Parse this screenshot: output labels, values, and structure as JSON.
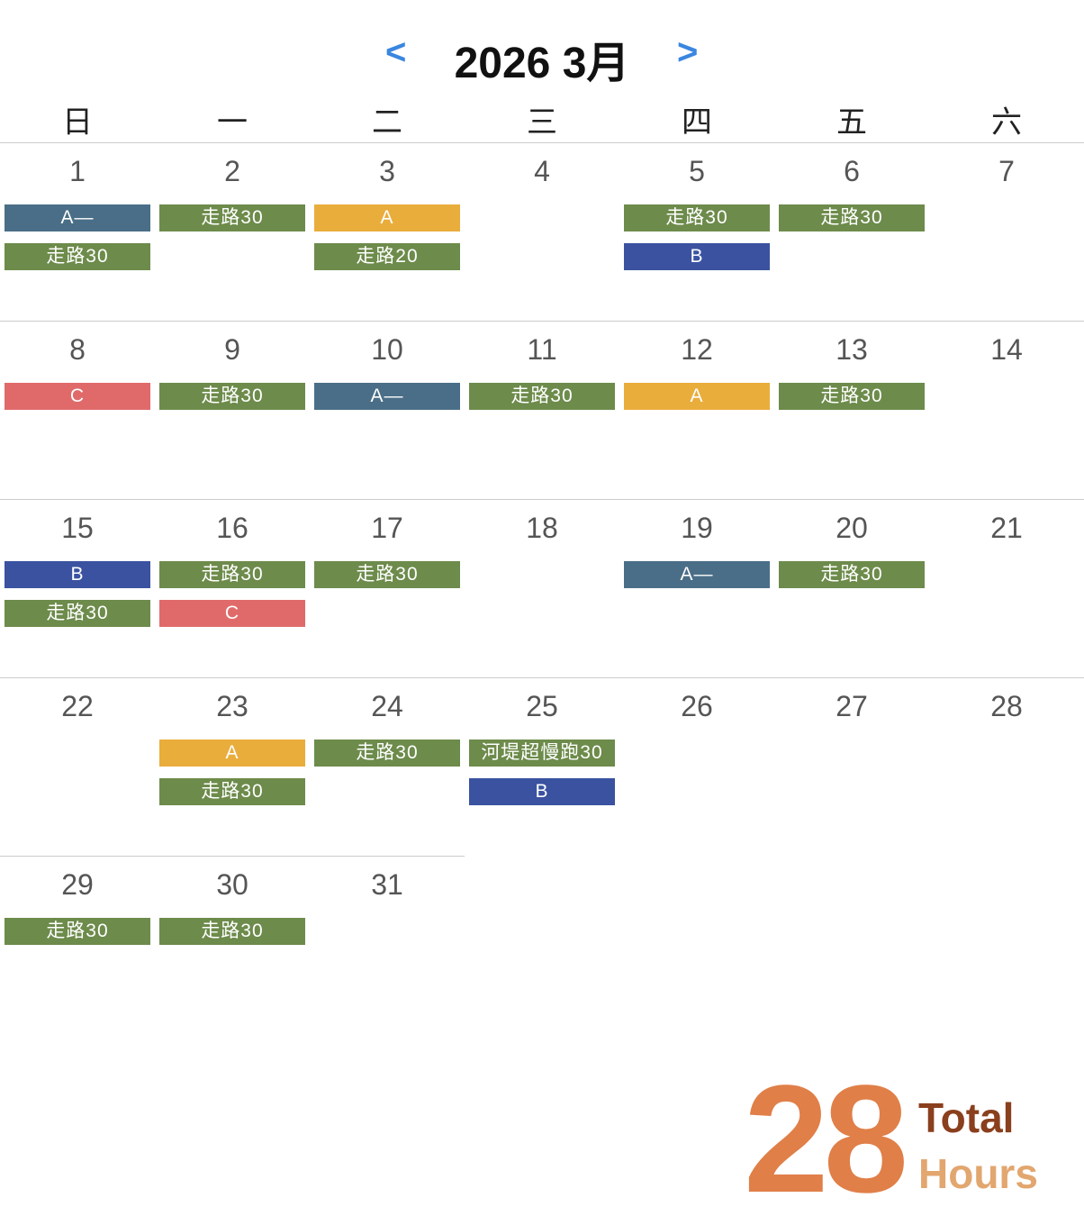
{
  "header": {
    "prev": "<",
    "title": "2026 3月",
    "next": ">"
  },
  "weekdays": [
    "日",
    "一",
    "二",
    "三",
    "四",
    "五",
    "六"
  ],
  "weeks": [
    {
      "days": [
        {
          "day": 1,
          "events": [
            {
              "label": "A—",
              "color": "#4a6e87"
            },
            {
              "label": "走路30",
              "color": "#6d8b4b"
            }
          ]
        },
        {
          "day": 2,
          "events": [
            {
              "label": "走路30",
              "color": "#6d8b4b"
            }
          ]
        },
        {
          "day": 3,
          "events": [
            {
              "label": "A",
              "color": "#e9ad3c"
            },
            {
              "label": "走路20",
              "color": "#6d8b4b"
            }
          ]
        },
        {
          "day": 4,
          "events": []
        },
        {
          "day": 5,
          "events": [
            {
              "label": "走路30",
              "color": "#6d8b4b"
            },
            {
              "label": "B",
              "color": "#3a52a0"
            }
          ]
        },
        {
          "day": 6,
          "events": [
            {
              "label": "走路30",
              "color": "#6d8b4b"
            }
          ]
        },
        {
          "day": 7,
          "events": []
        }
      ]
    },
    {
      "days": [
        {
          "day": 8,
          "events": [
            {
              "label": "C",
              "color": "#e06a6a"
            }
          ]
        },
        {
          "day": 9,
          "events": [
            {
              "label": "走路30",
              "color": "#6d8b4b"
            }
          ]
        },
        {
          "day": 10,
          "events": [
            {
              "label": "A—",
              "color": "#4a6e87"
            }
          ]
        },
        {
          "day": 11,
          "events": [
            {
              "label": "走路30",
              "color": "#6d8b4b"
            }
          ]
        },
        {
          "day": 12,
          "events": [
            {
              "label": "A",
              "color": "#e9ad3c"
            }
          ]
        },
        {
          "day": 13,
          "events": [
            {
              "label": "走路30",
              "color": "#6d8b4b"
            }
          ]
        },
        {
          "day": 14,
          "events": []
        }
      ]
    },
    {
      "days": [
        {
          "day": 15,
          "events": [
            {
              "label": "B",
              "color": "#3a52a0"
            },
            {
              "label": "走路30",
              "color": "#6d8b4b"
            }
          ]
        },
        {
          "day": 16,
          "events": [
            {
              "label": "走路30",
              "color": "#6d8b4b"
            },
            {
              "label": "C",
              "color": "#e06a6a"
            }
          ]
        },
        {
          "day": 17,
          "events": [
            {
              "label": "走路30",
              "color": "#6d8b4b"
            }
          ]
        },
        {
          "day": 18,
          "events": []
        },
        {
          "day": 19,
          "events": [
            {
              "label": "A—",
              "color": "#4a6e87"
            }
          ]
        },
        {
          "day": 20,
          "events": [
            {
              "label": "走路30",
              "color": "#6d8b4b"
            }
          ]
        },
        {
          "day": 21,
          "events": []
        }
      ]
    },
    {
      "days": [
        {
          "day": 22,
          "events": []
        },
        {
          "day": 23,
          "events": [
            {
              "label": "A",
              "color": "#e9ad3c"
            },
            {
              "label": "走路30",
              "color": "#6d8b4b"
            }
          ]
        },
        {
          "day": 24,
          "events": [
            {
              "label": "走路30",
              "color": "#6d8b4b"
            }
          ]
        },
        {
          "day": 25,
          "events": [
            {
              "label": "河堤超慢跑30",
              "color": "#6d8b4b"
            },
            {
              "label": "B",
              "color": "#3a52a0"
            }
          ]
        },
        {
          "day": 26,
          "events": []
        },
        {
          "day": 27,
          "events": []
        },
        {
          "day": 28,
          "events": []
        }
      ]
    },
    {
      "days": [
        {
          "day": 29,
          "events": [
            {
              "label": "走路30",
              "color": "#6d8b4b"
            }
          ]
        },
        {
          "day": 30,
          "events": [
            {
              "label": "走路30",
              "color": "#6d8b4b"
            }
          ]
        },
        {
          "day": 31,
          "events": []
        }
      ]
    }
  ],
  "summary": {
    "number": 28,
    "line1": "Total",
    "line2": "Hours"
  }
}
